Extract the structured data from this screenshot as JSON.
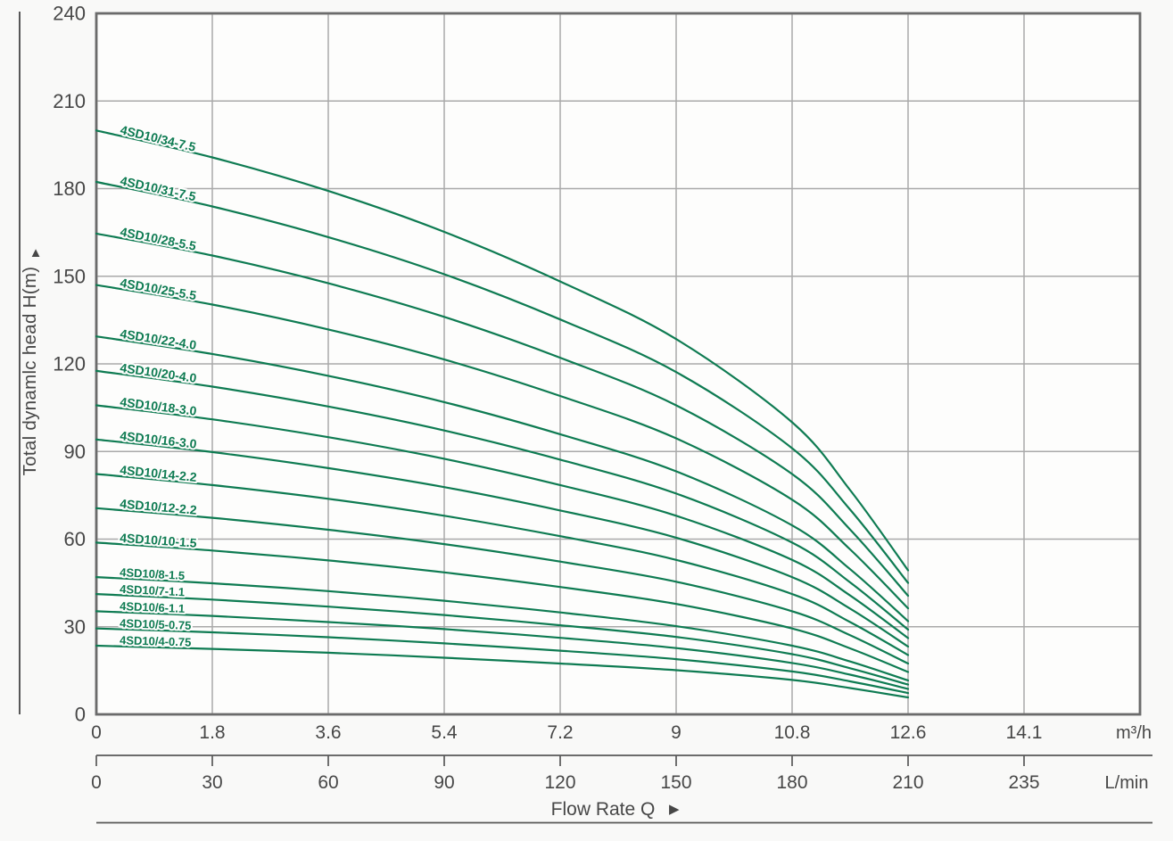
{
  "y_axis": {
    "title": "Total dynamlc head H(m)",
    "arrow": "▲",
    "tick_labels": [
      "240",
      "210",
      "180",
      "150",
      "120",
      "90",
      "60",
      "30",
      "0"
    ]
  },
  "x_axis_m3h": {
    "unit": "m³/h",
    "tick_labels": [
      "0",
      "1.8",
      "3.6",
      "5.4",
      "7.2",
      "9",
      "10.8",
      "12.6",
      "14.1"
    ]
  },
  "x_axis_lmin": {
    "unit": "L/min",
    "tick_labels": [
      "0",
      "30",
      "60",
      "90",
      "120",
      "150",
      "180",
      "210",
      "235"
    ]
  },
  "flow_label": {
    "text": "Flow Rate Q",
    "arrow": "▶"
  },
  "colors": {
    "curve": "#0e7b52",
    "grid": "#a9a9a9",
    "frame": "#6b6b6b",
    "axis_line": "#585858",
    "text": "#474747",
    "background": "#f9f9f8",
    "plot_background": "#fdfdfc"
  },
  "chart_data": {
    "type": "line",
    "title": "",
    "xlabel": "Flow Rate Q",
    "ylabel": "Total dynamlc head H(m)",
    "x_units": [
      "m³/h",
      "L/min"
    ],
    "x_ticks_m3h": [
      0,
      1.8,
      3.6,
      5.4,
      7.2,
      9,
      10.8,
      12.6,
      14.1
    ],
    "x_ticks_lmin": [
      0,
      30,
      60,
      90,
      120,
      150,
      180,
      210,
      235
    ],
    "ylim": [
      0,
      240
    ],
    "y_tick_step": 30,
    "grid": true,
    "legend_position": "labels-on-curves",
    "q_samples_m3h": [
      0,
      1.8,
      3.6,
      5.4,
      7.2,
      9,
      10.8,
      11.7,
      12.6
    ],
    "head_per_stage_m": [
      5.88,
      5.61,
      5.27,
      4.86,
      4.36,
      3.78,
      2.94,
      2.26,
      1.45
    ],
    "model_note": "head_m(q) = stages × head_per_stage_m(q); all curves drawn for q = 0 … 12.6 m³/h",
    "series": [
      {
        "name": "4SD10/34-7.5",
        "stages": 34,
        "heads_m": [
          199.9,
          190.7,
          179.2,
          165.2,
          148.2,
          128.5,
          100.0,
          76.8,
          49.3
        ]
      },
      {
        "name": "4SD10/31-7.5",
        "stages": 31,
        "heads_m": [
          182.3,
          173.9,
          163.4,
          150.7,
          135.2,
          117.2,
          91.1,
          70.1,
          45.0
        ]
      },
      {
        "name": "4SD10/28-5.5",
        "stages": 28,
        "heads_m": [
          164.6,
          157.1,
          147.6,
          136.1,
          122.1,
          105.8,
          82.3,
          63.3,
          40.6
        ]
      },
      {
        "name": "4SD10/25-5.5",
        "stages": 25,
        "heads_m": [
          147.0,
          140.3,
          131.8,
          121.5,
          109.0,
          94.5,
          73.5,
          56.5,
          36.3
        ]
      },
      {
        "name": "4SD10/22-4.0",
        "stages": 22,
        "heads_m": [
          129.4,
          123.4,
          115.9,
          106.9,
          95.9,
          83.2,
          64.7,
          49.7,
          31.9
        ]
      },
      {
        "name": "4SD10/20-4.0",
        "stages": 20,
        "heads_m": [
          117.6,
          112.2,
          105.4,
          97.2,
          87.2,
          75.6,
          58.8,
          45.2,
          29.0
        ]
      },
      {
        "name": "4SD10/18-3.0",
        "stages": 18,
        "heads_m": [
          105.8,
          101.0,
          94.9,
          87.5,
          78.5,
          68.0,
          52.9,
          40.7,
          26.1
        ]
      },
      {
        "name": "4SD10/16-3.0",
        "stages": 16,
        "heads_m": [
          94.1,
          89.8,
          84.3,
          77.8,
          69.8,
          60.5,
          47.0,
          36.2,
          23.2
        ]
      },
      {
        "name": "4SD10/14-2.2",
        "stages": 14,
        "heads_m": [
          82.3,
          78.5,
          73.8,
          68.0,
          61.0,
          52.9,
          41.2,
          31.6,
          20.3
        ]
      },
      {
        "name": "4SD10/12-2.2",
        "stages": 12,
        "heads_m": [
          70.6,
          67.3,
          63.2,
          58.3,
          52.3,
          45.4,
          35.3,
          27.1,
          17.4
        ]
      },
      {
        "name": "4SD10/10-1.5",
        "stages": 10,
        "heads_m": [
          58.8,
          56.1,
          52.7,
          48.6,
          43.6,
          37.8,
          29.4,
          22.6,
          14.5
        ]
      },
      {
        "name": "4SD10/8-1.5",
        "stages": 8,
        "heads_m": [
          47.0,
          44.9,
          42.2,
          38.9,
          34.9,
          30.2,
          23.5,
          18.1,
          11.6
        ]
      },
      {
        "name": "4SD10/7-1.1",
        "stages": 7,
        "heads_m": [
          41.2,
          39.3,
          36.9,
          34.0,
          30.5,
          26.5,
          20.6,
          15.8,
          10.2
        ]
      },
      {
        "name": "4SD10/6-1.1",
        "stages": 6,
        "heads_m": [
          35.3,
          33.7,
          31.6,
          29.2,
          26.2,
          22.7,
          17.6,
          13.6,
          8.7
        ]
      },
      {
        "name": "4SD10/5-0.75",
        "stages": 5,
        "heads_m": [
          29.4,
          28.1,
          26.4,
          24.3,
          21.8,
          18.9,
          14.7,
          11.3,
          7.3
        ]
      },
      {
        "name": "4SD10/4-0.75",
        "stages": 4,
        "heads_m": [
          23.5,
          22.4,
          21.1,
          19.4,
          17.4,
          15.1,
          11.8,
          9.0,
          5.8
        ]
      }
    ]
  }
}
